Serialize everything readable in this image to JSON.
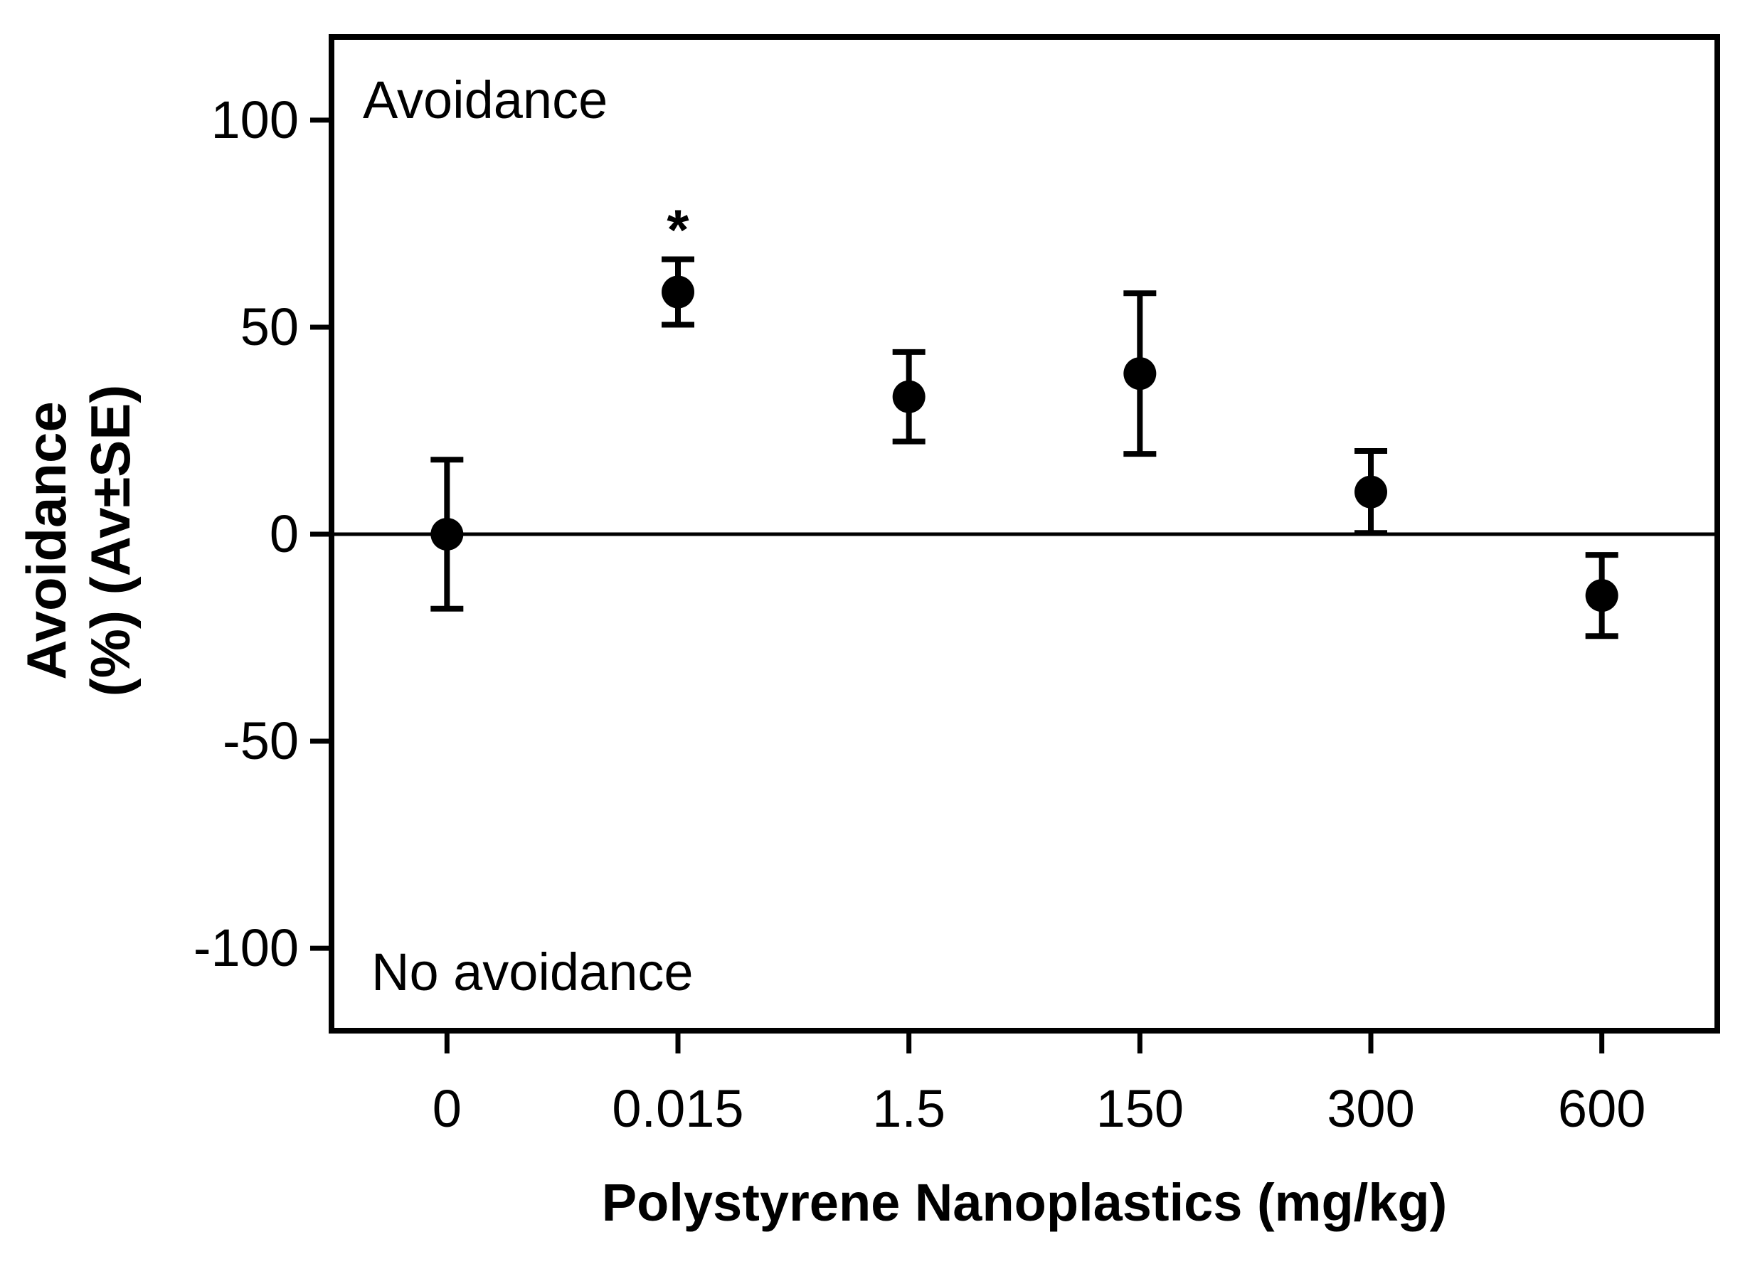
{
  "chart_data": {
    "type": "scatter",
    "title": "",
    "xlabel": "Polystyrene Nanoplastics (mg/kg)",
    "ylabel_line1": "Avoidance",
    "ylabel_line2": "(%) (Av±SE)",
    "categories": [
      "0",
      "0.015",
      "1.5",
      "150",
      "300",
      "600"
    ],
    "series": [
      {
        "name": "Avoidance (Av±SE)",
        "values": [
          0,
          58.5,
          33.2,
          38.8,
          10.2,
          -14.8
        ],
        "se": [
          18.0,
          7.9,
          10.8,
          19.4,
          9.9,
          9.8
        ],
        "significance": [
          "",
          "*",
          "",
          "",
          "",
          ""
        ]
      }
    ],
    "y_ticks": [
      100,
      50,
      0,
      -50,
      -100
    ],
    "y_tick_labels": [
      "100",
      "50",
      "0",
      "-50",
      "-100"
    ],
    "ylim": [
      -120,
      120
    ],
    "zero_line": true,
    "grid": false,
    "legend": "none",
    "marker": "filled-circle",
    "marker_color": "#000000",
    "axis_color": "#000000",
    "background_color": "#ffffff",
    "annotations": [
      {
        "text": "Avoidance",
        "position": "top-left"
      },
      {
        "text": "No avoidance",
        "position": "bottom-left"
      }
    ]
  }
}
